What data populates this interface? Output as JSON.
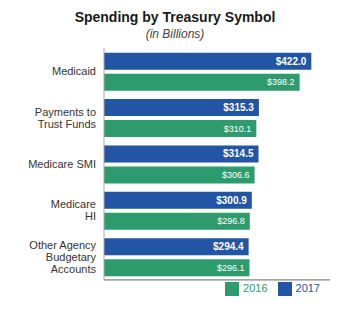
{
  "chart_data": {
    "type": "bar",
    "orientation": "horizontal",
    "title": "Spending by Treasury Symbol",
    "subtitle": "(in Billions)",
    "categories": [
      "Medicaid",
      "Payments to\nTrust Funds",
      "Medicare SMI",
      "Medicare\nHI",
      "Other Agency\nBudgetary\nAccounts"
    ],
    "series": [
      {
        "name": "2017",
        "color": "#2255a4",
        "values": [
          422.0,
          315.3,
          314.5,
          300.9,
          294.4
        ],
        "value_labels": [
          "$422.0",
          "$315.3",
          "$314.5",
          "$300.9",
          "$294.4"
        ]
      },
      {
        "name": "2016",
        "color": "#2e9b6e",
        "values": [
          398.2,
          310.1,
          306.6,
          296.8,
          296.1
        ],
        "value_labels": [
          "$398.2",
          "$310.1",
          "$306.6",
          "$296.8",
          "$296.1"
        ]
      }
    ],
    "xlim": [
      0,
      460
    ],
    "data_labels": true,
    "legend": "lower right",
    "grid": false,
    "tick_labels": "y"
  }
}
